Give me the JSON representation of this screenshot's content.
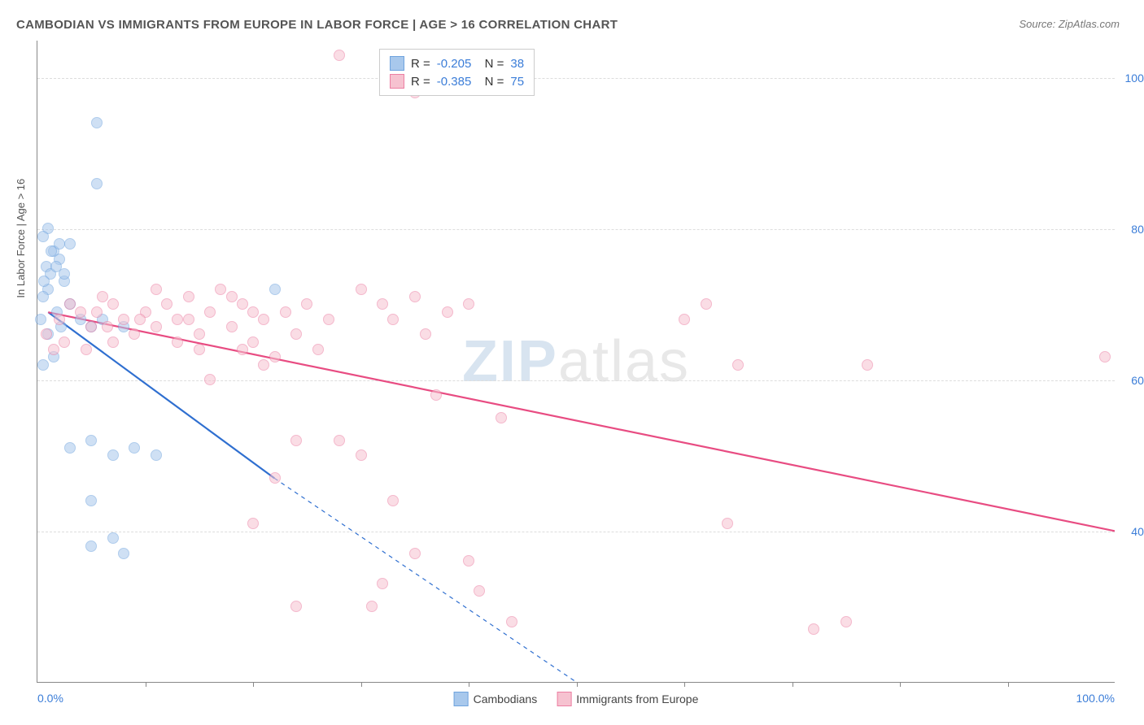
{
  "title": "CAMBODIAN VS IMMIGRANTS FROM EUROPE IN LABOR FORCE | AGE > 16 CORRELATION CHART",
  "source": "Source: ZipAtlas.com",
  "ylabel": "In Labor Force | Age > 16",
  "watermark_bold": "ZIP",
  "watermark_rest": "atlas",
  "chart": {
    "type": "scatter",
    "xlim": [
      0,
      100
    ],
    "ylim": [
      20,
      105
    ],
    "x_tick_left_label": "0.0%",
    "x_tick_right_label": "100.0%",
    "x_tick_positions": [
      10,
      20,
      30,
      40,
      50,
      60,
      70,
      80,
      90
    ],
    "y_gridlines": [
      40,
      60,
      80,
      100
    ],
    "y_tick_labels": [
      "40.0%",
      "60.0%",
      "80.0%",
      "100.0%"
    ],
    "background_color": "#ffffff",
    "grid_color": "#dddddd",
    "axis_color": "#888888",
    "tick_label_color": "#3b7dd8",
    "marker_radius": 7,
    "marker_opacity": 0.55,
    "series": [
      {
        "name": "Cambodians",
        "color_fill": "#a8c8ec",
        "color_stroke": "#6fa3de",
        "R": "-0.205",
        "N": "38",
        "trend": {
          "x1": 1,
          "y1": 69,
          "x2": 22,
          "y2": 47,
          "x2_ext": 50,
          "y2_ext": 20,
          "solid_color": "#2f6fd0",
          "width": 2.2
        },
        "points": [
          {
            "x": 1,
            "y": 80
          },
          {
            "x": 0.5,
            "y": 79
          },
          {
            "x": 1.5,
            "y": 77
          },
          {
            "x": 2,
            "y": 76
          },
          {
            "x": 0.8,
            "y": 75
          },
          {
            "x": 1.2,
            "y": 74
          },
          {
            "x": 2.5,
            "y": 73
          },
          {
            "x": 1,
            "y": 72
          },
          {
            "x": 0.5,
            "y": 71
          },
          {
            "x": 3,
            "y": 70
          },
          {
            "x": 1.8,
            "y": 69
          },
          {
            "x": 0.3,
            "y": 68
          },
          {
            "x": 2.2,
            "y": 67
          },
          {
            "x": 1,
            "y": 66
          },
          {
            "x": 4,
            "y": 68
          },
          {
            "x": 5,
            "y": 67
          },
          {
            "x": 6,
            "y": 68
          },
          {
            "x": 8,
            "y": 67
          },
          {
            "x": 22,
            "y": 72
          },
          {
            "x": 5.5,
            "y": 94
          },
          {
            "x": 5.5,
            "y": 86
          },
          {
            "x": 3,
            "y": 78
          },
          {
            "x": 0.5,
            "y": 62
          },
          {
            "x": 1.5,
            "y": 63
          },
          {
            "x": 2,
            "y": 78
          },
          {
            "x": 5,
            "y": 52
          },
          {
            "x": 3,
            "y": 51
          },
          {
            "x": 9,
            "y": 51
          },
          {
            "x": 7,
            "y": 50
          },
          {
            "x": 11,
            "y": 50
          },
          {
            "x": 5,
            "y": 44
          },
          {
            "x": 7,
            "y": 39
          },
          {
            "x": 5,
            "y": 38
          },
          {
            "x": 8,
            "y": 37
          },
          {
            "x": 2.5,
            "y": 74
          },
          {
            "x": 1.7,
            "y": 75
          },
          {
            "x": 0.6,
            "y": 73
          },
          {
            "x": 1.3,
            "y": 77
          }
        ]
      },
      {
        "name": "Immigrants from Europe",
        "color_fill": "#f6c2d0",
        "color_stroke": "#ec7fa3",
        "R": "-0.385",
        "N": "75",
        "trend": {
          "x1": 1,
          "y1": 69,
          "x2": 100,
          "y2": 40,
          "solid_color": "#e84c82",
          "width": 2.2
        },
        "points": [
          {
            "x": 2,
            "y": 68
          },
          {
            "x": 4,
            "y": 69
          },
          {
            "x": 5,
            "y": 67
          },
          {
            "x": 7,
            "y": 70
          },
          {
            "x": 8,
            "y": 68
          },
          {
            "x": 9,
            "y": 66
          },
          {
            "x": 10,
            "y": 69
          },
          {
            "x": 11,
            "y": 67
          },
          {
            "x": 12,
            "y": 70
          },
          {
            "x": 13,
            "y": 68
          },
          {
            "x": 14,
            "y": 71
          },
          {
            "x": 15,
            "y": 66
          },
          {
            "x": 15,
            "y": 64
          },
          {
            "x": 16,
            "y": 69
          },
          {
            "x": 17,
            "y": 72
          },
          {
            "x": 18,
            "y": 67
          },
          {
            "x": 19,
            "y": 70
          },
          {
            "x": 20,
            "y": 65
          },
          {
            "x": 21,
            "y": 68
          },
          {
            "x": 22,
            "y": 63
          },
          {
            "x": 23,
            "y": 69
          },
          {
            "x": 24,
            "y": 66
          },
          {
            "x": 25,
            "y": 70
          },
          {
            "x": 26,
            "y": 64
          },
          {
            "x": 27,
            "y": 68
          },
          {
            "x": 28,
            "y": 103
          },
          {
            "x": 35,
            "y": 98
          },
          {
            "x": 30,
            "y": 72
          },
          {
            "x": 32,
            "y": 70
          },
          {
            "x": 33,
            "y": 68
          },
          {
            "x": 35,
            "y": 71
          },
          {
            "x": 36,
            "y": 66
          },
          {
            "x": 38,
            "y": 69
          },
          {
            "x": 40,
            "y": 70
          },
          {
            "x": 21,
            "y": 62
          },
          {
            "x": 16,
            "y": 60
          },
          {
            "x": 22,
            "y": 47
          },
          {
            "x": 24,
            "y": 52
          },
          {
            "x": 20,
            "y": 41
          },
          {
            "x": 24,
            "y": 30
          },
          {
            "x": 28,
            "y": 52
          },
          {
            "x": 30,
            "y": 50
          },
          {
            "x": 31,
            "y": 30
          },
          {
            "x": 32,
            "y": 33
          },
          {
            "x": 33,
            "y": 44
          },
          {
            "x": 35,
            "y": 37
          },
          {
            "x": 37,
            "y": 58
          },
          {
            "x": 40,
            "y": 36
          },
          {
            "x": 41,
            "y": 32
          },
          {
            "x": 43,
            "y": 55
          },
          {
            "x": 44,
            "y": 28
          },
          {
            "x": 60,
            "y": 68
          },
          {
            "x": 62,
            "y": 70
          },
          {
            "x": 64,
            "y": 41
          },
          {
            "x": 65,
            "y": 62
          },
          {
            "x": 72,
            "y": 27
          },
          {
            "x": 75,
            "y": 28
          },
          {
            "x": 77,
            "y": 62
          },
          {
            "x": 99,
            "y": 63
          },
          {
            "x": 3,
            "y": 70
          },
          {
            "x": 6,
            "y": 71
          },
          {
            "x": 7,
            "y": 65
          },
          {
            "x": 11,
            "y": 72
          },
          {
            "x": 13,
            "y": 65
          },
          {
            "x": 14,
            "y": 68
          },
          {
            "x": 18,
            "y": 71
          },
          {
            "x": 19,
            "y": 64
          },
          {
            "x": 20,
            "y": 69
          },
          {
            "x": 0.8,
            "y": 66
          },
          {
            "x": 1.5,
            "y": 64
          },
          {
            "x": 2.5,
            "y": 65
          },
          {
            "x": 4.5,
            "y": 64
          },
          {
            "x": 5.5,
            "y": 69
          },
          {
            "x": 6.5,
            "y": 67
          },
          {
            "x": 9.5,
            "y": 68
          }
        ]
      }
    ]
  },
  "legend_bottom": [
    {
      "label": "Cambodians",
      "fill": "#a8c8ec",
      "stroke": "#6fa3de"
    },
    {
      "label": "Immigrants from Europe",
      "fill": "#f6c2d0",
      "stroke": "#ec7fa3"
    }
  ]
}
